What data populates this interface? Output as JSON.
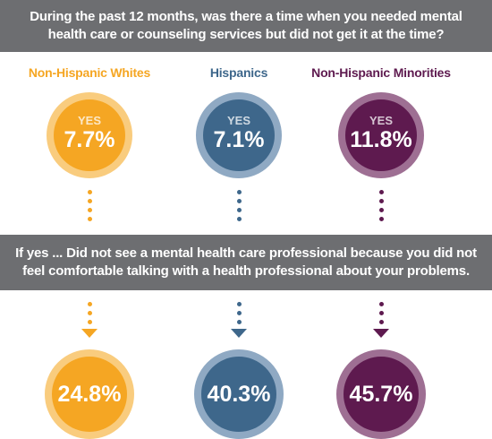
{
  "question_top": {
    "line1": "During the past 12 months, was there a time when you needed mental",
    "line2": "health care or counseling services but did not get it at the time?"
  },
  "question_mid": {
    "line1": "If yes ... Did not see a mental health care professional because you did not",
    "line2": "feel comfortable talking with a health professional about your problems."
  },
  "chart_data": {
    "type": "table",
    "categories": [
      "Non-Hispanic Whites",
      "Hispanics",
      "Non-Hispanic Minorities"
    ],
    "series": [
      {
        "name": "",
        "values": [
          7.7,
          7.1,
          11.8
        ]
      },
      {
        "name": "",
        "values": [
          24.8,
          40.3,
          45.7
        ]
      }
    ],
    "title": "",
    "unit": "%"
  },
  "groups": [
    {
      "label": "Non-Hispanic Whites",
      "yes": "YES",
      "top_pct": "7.7%",
      "bottom_pct": "24.8%",
      "color": "#f5a623",
      "ring": "#f9cc7e"
    },
    {
      "label": "Hispanics",
      "yes": "YES",
      "top_pct": "7.1%",
      "bottom_pct": "40.3%",
      "color": "#3e678b",
      "ring": "#8fa9c3"
    },
    {
      "label": "Non-Hispanic Minorities",
      "yes": "YES",
      "top_pct": "11.8%",
      "bottom_pct": "45.7%",
      "color": "#5e1a4f",
      "ring": "#9e6f93"
    }
  ]
}
